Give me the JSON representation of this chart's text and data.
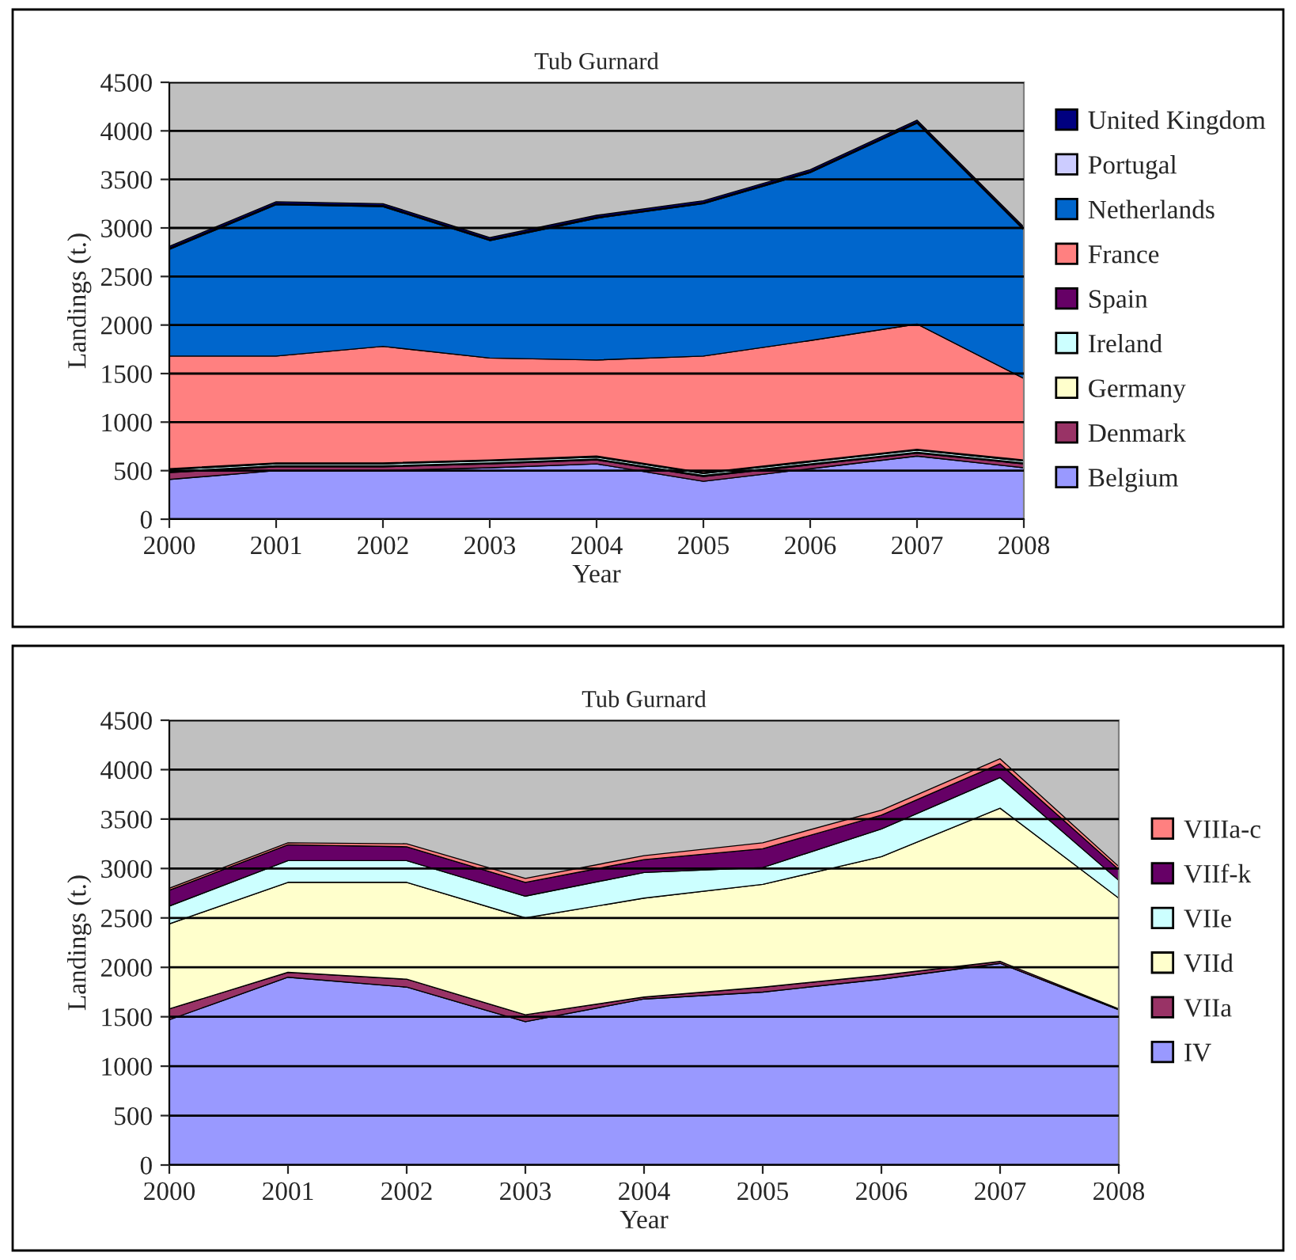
{
  "chart_data": [
    {
      "type": "area",
      "stacked": true,
      "title": "Tub Gurnard",
      "xlabel": "Year",
      "ylabel": "Landings (t.)",
      "x": [
        2000,
        2001,
        2002,
        2003,
        2004,
        2005,
        2006,
        2007,
        2008
      ],
      "xlim": [
        2000,
        2008
      ],
      "xticks": [
        2000,
        2001,
        2002,
        2003,
        2004,
        2005,
        2006,
        2007,
        2008
      ],
      "ylim": [
        0,
        4500
      ],
      "yticks": [
        0,
        500,
        1000,
        1500,
        2000,
        2500,
        3000,
        3500,
        4000,
        4500
      ],
      "grid": "y",
      "legend": "right",
      "series": [
        {
          "name": "Belgium",
          "color": "#9999ff",
          "values": [
            410,
            500,
            500,
            530,
            570,
            390,
            520,
            650,
            530
          ]
        },
        {
          "name": "Denmark",
          "color": "#993366",
          "values": [
            70,
            40,
            40,
            40,
            40,
            50,
            40,
            30,
            40
          ]
        },
        {
          "name": "Germany",
          "color": "#ffffcc",
          "values": [
            10,
            10,
            10,
            10,
            10,
            10,
            10,
            10,
            10
          ]
        },
        {
          "name": "Ireland",
          "color": "#ccffff",
          "values": [
            20,
            20,
            20,
            20,
            20,
            20,
            20,
            20,
            20
          ]
        },
        {
          "name": "Spain",
          "color": "#660066",
          "values": [
            10,
            10,
            10,
            10,
            10,
            10,
            10,
            10,
            10
          ]
        },
        {
          "name": "France",
          "color": "#ff8080",
          "values": [
            1160,
            1100,
            1200,
            1050,
            990,
            1200,
            1240,
            1290,
            840
          ]
        },
        {
          "name": "Netherlands",
          "color": "#0066cc",
          "values": [
            1100,
            1560,
            1440,
            1210,
            1460,
            1570,
            1730,
            2070,
            1530
          ]
        },
        {
          "name": "Portugal",
          "color": "#ccccff",
          "values": [
            10,
            10,
            10,
            10,
            10,
            10,
            10,
            10,
            10
          ]
        },
        {
          "name": "United Kingdom",
          "color": "#000080",
          "values": [
            20,
            20,
            20,
            20,
            20,
            20,
            20,
            20,
            20
          ]
        }
      ]
    },
    {
      "type": "area",
      "stacked": true,
      "title": "Tub Gurnard",
      "xlabel": "Year",
      "ylabel": "Landings (t.)",
      "x": [
        2000,
        2001,
        2002,
        2003,
        2004,
        2005,
        2006,
        2007,
        2008
      ],
      "xlim": [
        2000,
        2008
      ],
      "xticks": [
        2000,
        2001,
        2002,
        2003,
        2004,
        2005,
        2006,
        2007,
        2008
      ],
      "ylim": [
        0,
        4500
      ],
      "yticks": [
        0,
        500,
        1000,
        1500,
        2000,
        2500,
        3000,
        3500,
        4000,
        4500
      ],
      "grid": "y",
      "legend": "right",
      "series": [
        {
          "name": "IV",
          "color": "#9999ff",
          "values": [
            1470,
            1900,
            1800,
            1450,
            1680,
            1750,
            1880,
            2040,
            1570
          ]
        },
        {
          "name": "VIIa",
          "color": "#993366",
          "values": [
            110,
            50,
            80,
            70,
            20,
            50,
            40,
            20,
            10
          ]
        },
        {
          "name": "VIId",
          "color": "#ffffcc",
          "values": [
            860,
            910,
            980,
            980,
            1000,
            1040,
            1200,
            1550,
            1120
          ]
        },
        {
          "name": "VIIe",
          "color": "#ccffff",
          "values": [
            180,
            220,
            220,
            220,
            260,
            170,
            280,
            310,
            180
          ]
        },
        {
          "name": "VIIf-k",
          "color": "#660066",
          "values": [
            160,
            160,
            140,
            140,
            130,
            190,
            140,
            140,
            110
          ]
        },
        {
          "name": "VIIIa-c",
          "color": "#ff8080",
          "values": [
            20,
            20,
            30,
            40,
            40,
            60,
            50,
            50,
            30
          ]
        }
      ]
    }
  ]
}
